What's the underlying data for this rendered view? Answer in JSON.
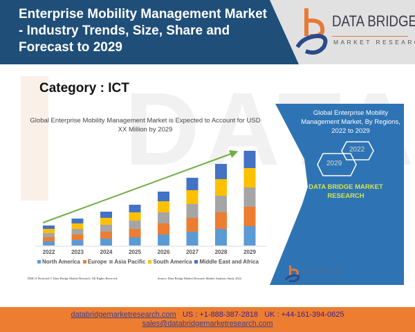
{
  "header": {
    "title": "Enterprise Mobility Management Market - Industry Trends, Size, Share and Forecast to 2029",
    "logo_name": "DATA BRIDGE",
    "logo_sub": "MARKET RESEARCH"
  },
  "category_label": "Category : ICT",
  "watermark": "DATA BRIDGE",
  "colors": {
    "header_blue": "#1f4e79",
    "panel_blue": "#2e74b5",
    "footer_orange": "#ed7d31",
    "brand_green": "#d5e64a",
    "arrow_green": "#70ad47"
  },
  "chart_data": {
    "type": "bar",
    "stacked": true,
    "title": "Global Enterprise Mobility Management Market is Expected to Account for USD XX Million by 2029",
    "xlabel": "",
    "ylabel": "",
    "y_axis_shown": false,
    "grid": false,
    "legend_position": "bottom",
    "categories": [
      "2022",
      "2023",
      "2024",
      "2025",
      "2026",
      "2027",
      "2028",
      "2029"
    ],
    "series": [
      {
        "name": "North America",
        "color": "#5b9bd5",
        "values": [
          6,
          8,
          10,
          12,
          16,
          20,
          24,
          28
        ]
      },
      {
        "name": "Europe",
        "color": "#ed7d31",
        "values": [
          6,
          8,
          10,
          12,
          16,
          20,
          24,
          28
        ]
      },
      {
        "name": "Asia Pacific",
        "color": "#a5a5a5",
        "values": [
          6,
          8,
          10,
          12,
          16,
          20,
          24,
          28
        ]
      },
      {
        "name": "South America",
        "color": "#ffc000",
        "values": [
          6,
          8,
          10,
          12,
          16,
          20,
          24,
          28
        ]
      },
      {
        "name": "Middle East and Africa",
        "color": "#4472c4",
        "values": [
          5,
          7,
          9,
          11,
          14,
          18,
          22,
          25
        ]
      }
    ],
    "ylim": [
      0,
      140
    ],
    "annotations": [
      "upward growth trend arrow from 2022 to 2029"
    ]
  },
  "footnotes": {
    "left": "DMCA Protected © Data Bridge Market Research. All Rights Reserved.",
    "right": "Source: Data Bridge Market Research Market Analysis Study 2022"
  },
  "panel": {
    "title": "Global Enterprise Mobility Management Market, By Regions, 2022 to 2029",
    "hex_start": "2022",
    "hex_end": "2029",
    "brand": "DATA BRIDGE MARKET RESEARCH",
    "mini_logo_text": "DATA BRIDGE"
  },
  "footer": {
    "website": "databridgemarketresearch.com",
    "us_phone": "US : +1-888-387-2818",
    "uk_phone": "UK : +44-161-394-0625",
    "email": "sales@databridgemarketresearch.com"
  }
}
